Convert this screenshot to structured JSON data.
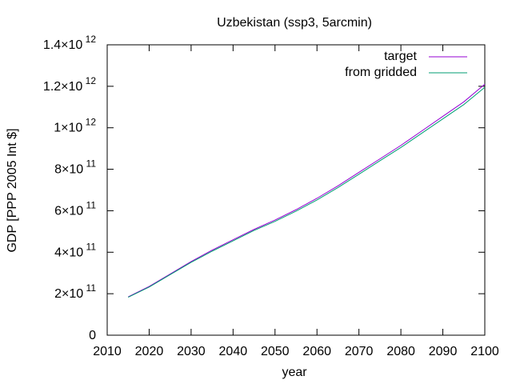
{
  "chart_data": {
    "type": "line",
    "title": "Uzbekistan (ssp3, 5arcmin)",
    "xlabel": "year",
    "ylabel": "GDP [PPP 2005 Int $]",
    "xlim": [
      2010,
      2100
    ],
    "ylim": [
      0,
      1400000000000
    ],
    "x_ticks": [
      2010,
      2020,
      2030,
      2040,
      2050,
      2060,
      2070,
      2080,
      2090,
      2100
    ],
    "x_tick_labels": [
      "2010",
      "2020",
      "2030",
      "2040",
      "2050",
      "2060",
      "2070",
      "2080",
      "2090",
      "2100"
    ],
    "y_ticks": [
      {
        "value": 0,
        "mantissa": "0",
        "exponent": ""
      },
      {
        "value": 200000000000,
        "mantissa": "2×10",
        "exponent": "11"
      },
      {
        "value": 400000000000,
        "mantissa": "4×10",
        "exponent": "11"
      },
      {
        "value": 600000000000,
        "mantissa": "6×10",
        "exponent": "11"
      },
      {
        "value": 800000000000,
        "mantissa": "8×10",
        "exponent": "11"
      },
      {
        "value": 1000000000000,
        "mantissa": "1×10",
        "exponent": "12"
      },
      {
        "value": 1200000000000,
        "mantissa": "1.2×10",
        "exponent": "12"
      },
      {
        "value": 1400000000000,
        "mantissa": "1.4×10",
        "exponent": "12"
      }
    ],
    "grid": false,
    "legend_position": "top-right",
    "series": [
      {
        "name": "target",
        "color": "#9400d3",
        "x": [
          2015,
          2020,
          2025,
          2030,
          2035,
          2040,
          2045,
          2050,
          2055,
          2060,
          2065,
          2070,
          2075,
          2080,
          2085,
          2090,
          2095,
          2100
        ],
        "y": [
          185000000000,
          235000000000,
          295000000000,
          355000000000,
          410000000000,
          460000000000,
          510000000000,
          555000000000,
          605000000000,
          660000000000,
          720000000000,
          785000000000,
          850000000000,
          915000000000,
          985000000000,
          1055000000000,
          1125000000000,
          1210000000000
        ]
      },
      {
        "name": "from gridded",
        "color": "#009e73",
        "x": [
          2015,
          2020,
          2025,
          2030,
          2035,
          2040,
          2045,
          2050,
          2055,
          2060,
          2065,
          2070,
          2075,
          2080,
          2085,
          2090,
          2095,
          2100
        ],
        "y": [
          183000000000,
          232000000000,
          292000000000,
          351000000000,
          405000000000,
          455000000000,
          505000000000,
          549000000000,
          598000000000,
          652000000000,
          712000000000,
          776000000000,
          841000000000,
          905000000000,
          974000000000,
          1043000000000,
          1112000000000,
          1195000000000
        ]
      }
    ]
  }
}
